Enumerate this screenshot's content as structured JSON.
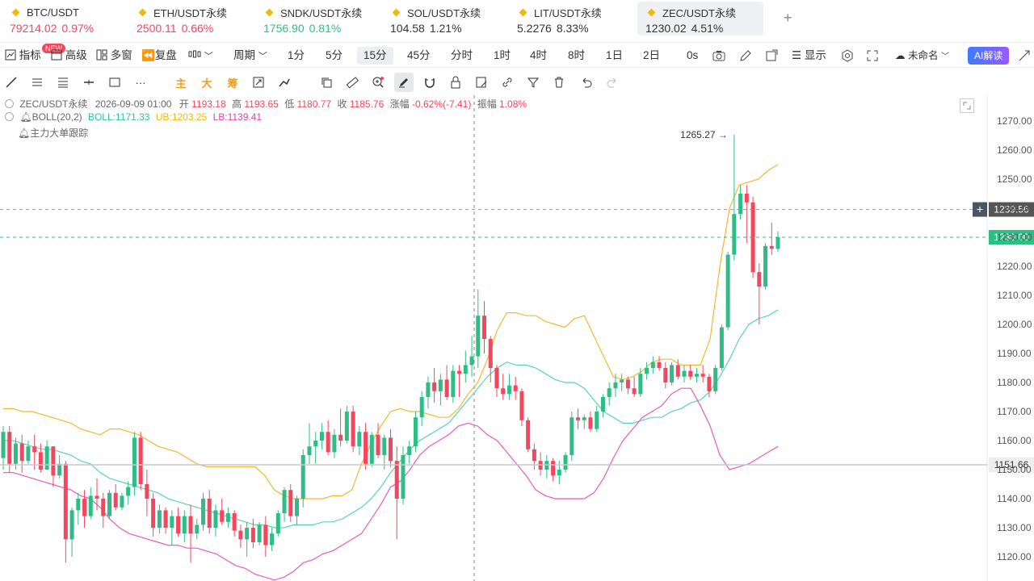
{
  "tickers": [
    {
      "symbol": "BTC/USDT",
      "price": "79214.02",
      "change": "0.97%",
      "trend": "down",
      "active": false
    },
    {
      "symbol": "ETH/USDT永续",
      "price": "2500.11",
      "change": "0.66%",
      "trend": "down",
      "active": false
    },
    {
      "symbol": "SNDK/USDT永续",
      "price": "1756.90",
      "change": "0.81%",
      "trend": "up",
      "active": false
    },
    {
      "symbol": "SOL/USDT永续",
      "price": "104.58",
      "change": "1.21%",
      "trend": "neutral",
      "active": false
    },
    {
      "symbol": "LIT/USDT永续",
      "price": "5.2276",
      "change": "8.33%",
      "trend": "neutral",
      "active": false
    },
    {
      "symbol": "ZEC/USDT永续",
      "price": "1230.02",
      "change": "4.51%",
      "trend": "neutral",
      "active": true
    }
  ],
  "add_tab": "+",
  "toolbar": {
    "indicator": "指标",
    "new_badge": "NEW",
    "advanced": "高级",
    "multi_window": "多窗",
    "replay": "复盘",
    "period": "周期",
    "intervals": [
      "1分",
      "5分",
      "15分",
      "45分",
      "分时",
      "1时",
      "4时",
      "8时",
      "1日",
      "2日",
      "0s"
    ],
    "selected_interval": "15分",
    "display": "显示",
    "unnamed": "未命名",
    "ai": "AI解读"
  },
  "drawbar": {
    "main": "主",
    "large": "大",
    "chips": "筹"
  },
  "info": {
    "symbol": "ZEC/USDT永续",
    "datetime": "2026-09-09 01:00",
    "open_label": "开",
    "open": "1193.18",
    "high_label": "高",
    "high": "1193.65",
    "low_label": "低",
    "low": "1180.77",
    "close_label": "收",
    "close": "1185.76",
    "change_label": "涨幅",
    "change": "-0.62%(-7.41)",
    "amp_label": "振幅",
    "amp": "1.08%",
    "boll_name": "BOLL(20,2)",
    "boll_mid": "BOLL:1171.33",
    "boll_ub": "UB:1203.25",
    "boll_lb": "LB:1139.41",
    "tracker": "主力大单跟踪"
  },
  "chart_data": {
    "type": "candlestick",
    "y_ticks": [
      1270,
      1260,
      1250,
      1240,
      1230,
      1220,
      1210,
      1200,
      1190,
      1180,
      1170,
      1160,
      1150,
      1140,
      1130,
      1120
    ],
    "ylim": [
      1115,
      1273
    ],
    "max_label": "1265.27",
    "price_tags": [
      {
        "value": 1239.56,
        "label": "1239.56",
        "kind": "crosshair"
      },
      {
        "value": 1230.0,
        "label": "1230.00",
        "kind": "last"
      },
      {
        "value": 1151.66,
        "label": "1151.66",
        "kind": "level"
      }
    ],
    "candles": [
      {
        "o": 1154,
        "h": 1165,
        "l": 1150,
        "c": 1163
      },
      {
        "o": 1163,
        "h": 1165,
        "l": 1149,
        "c": 1152
      },
      {
        "o": 1152,
        "h": 1161,
        "l": 1150,
        "c": 1159
      },
      {
        "o": 1159,
        "h": 1162,
        "l": 1149,
        "c": 1153
      },
      {
        "o": 1153,
        "h": 1160,
        "l": 1152,
        "c": 1158
      },
      {
        "o": 1158,
        "h": 1162,
        "l": 1150,
        "c": 1156
      },
      {
        "o": 1156,
        "h": 1159,
        "l": 1149,
        "c": 1150
      },
      {
        "o": 1150,
        "h": 1160,
        "l": 1150,
        "c": 1158
      },
      {
        "o": 1158,
        "h": 1158,
        "l": 1144,
        "c": 1148
      },
      {
        "o": 1148,
        "h": 1155,
        "l": 1147,
        "c": 1152
      },
      {
        "o": 1152,
        "h": 1153,
        "l": 1118,
        "c": 1126
      },
      {
        "o": 1126,
        "h": 1137,
        "l": 1120,
        "c": 1136
      },
      {
        "o": 1136,
        "h": 1142,
        "l": 1131,
        "c": 1140
      },
      {
        "o": 1140,
        "h": 1143,
        "l": 1130,
        "c": 1134
      },
      {
        "o": 1134,
        "h": 1144,
        "l": 1133,
        "c": 1141
      },
      {
        "o": 1141,
        "h": 1147,
        "l": 1136,
        "c": 1140
      },
      {
        "o": 1140,
        "h": 1142,
        "l": 1130,
        "c": 1134
      },
      {
        "o": 1134,
        "h": 1143,
        "l": 1133,
        "c": 1142
      },
      {
        "o": 1142,
        "h": 1145,
        "l": 1136,
        "c": 1137
      },
      {
        "o": 1137,
        "h": 1142,
        "l": 1136,
        "c": 1141
      },
      {
        "o": 1141,
        "h": 1146,
        "l": 1138,
        "c": 1144
      },
      {
        "o": 1144,
        "h": 1163,
        "l": 1141,
        "c": 1161
      },
      {
        "o": 1161,
        "h": 1163,
        "l": 1143,
        "c": 1145
      },
      {
        "o": 1145,
        "h": 1150,
        "l": 1134,
        "c": 1140
      },
      {
        "o": 1140,
        "h": 1142,
        "l": 1127,
        "c": 1130
      },
      {
        "o": 1130,
        "h": 1138,
        "l": 1128,
        "c": 1136
      },
      {
        "o": 1136,
        "h": 1137,
        "l": 1128,
        "c": 1130
      },
      {
        "o": 1130,
        "h": 1136,
        "l": 1124,
        "c": 1134
      },
      {
        "o": 1134,
        "h": 1137,
        "l": 1127,
        "c": 1128
      },
      {
        "o": 1128,
        "h": 1136,
        "l": 1125,
        "c": 1134
      },
      {
        "o": 1134,
        "h": 1138,
        "l": 1118,
        "c": 1128
      },
      {
        "o": 1128,
        "h": 1133,
        "l": 1126,
        "c": 1131
      },
      {
        "o": 1131,
        "h": 1142,
        "l": 1129,
        "c": 1140
      },
      {
        "o": 1140,
        "h": 1143,
        "l": 1128,
        "c": 1130
      },
      {
        "o": 1130,
        "h": 1138,
        "l": 1127,
        "c": 1136
      },
      {
        "o": 1136,
        "h": 1140,
        "l": 1131,
        "c": 1132
      },
      {
        "o": 1132,
        "h": 1137,
        "l": 1130,
        "c": 1135
      },
      {
        "o": 1135,
        "h": 1136,
        "l": 1127,
        "c": 1129
      },
      {
        "o": 1129,
        "h": 1131,
        "l": 1123,
        "c": 1126
      },
      {
        "o": 1126,
        "h": 1132,
        "l": 1120,
        "c": 1130
      },
      {
        "o": 1130,
        "h": 1133,
        "l": 1123,
        "c": 1125
      },
      {
        "o": 1125,
        "h": 1132,
        "l": 1124,
        "c": 1131
      },
      {
        "o": 1131,
        "h": 1134,
        "l": 1120,
        "c": 1124
      },
      {
        "o": 1124,
        "h": 1130,
        "l": 1122,
        "c": 1128
      },
      {
        "o": 1128,
        "h": 1136,
        "l": 1127,
        "c": 1135
      },
      {
        "o": 1135,
        "h": 1144,
        "l": 1132,
        "c": 1143
      },
      {
        "o": 1143,
        "h": 1145,
        "l": 1132,
        "c": 1134
      },
      {
        "o": 1134,
        "h": 1141,
        "l": 1131,
        "c": 1140
      },
      {
        "o": 1140,
        "h": 1157,
        "l": 1137,
        "c": 1155
      },
      {
        "o": 1155,
        "h": 1166,
        "l": 1152,
        "c": 1158
      },
      {
        "o": 1158,
        "h": 1163,
        "l": 1152,
        "c": 1160
      },
      {
        "o": 1160,
        "h": 1166,
        "l": 1157,
        "c": 1163
      },
      {
        "o": 1163,
        "h": 1167,
        "l": 1155,
        "c": 1156
      },
      {
        "o": 1156,
        "h": 1164,
        "l": 1154,
        "c": 1162
      },
      {
        "o": 1162,
        "h": 1171,
        "l": 1158,
        "c": 1160
      },
      {
        "o": 1160,
        "h": 1172,
        "l": 1159,
        "c": 1170
      },
      {
        "o": 1170,
        "h": 1172,
        "l": 1156,
        "c": 1158
      },
      {
        "o": 1158,
        "h": 1165,
        "l": 1155,
        "c": 1163
      },
      {
        "o": 1163,
        "h": 1166,
        "l": 1150,
        "c": 1152
      },
      {
        "o": 1152,
        "h": 1163,
        "l": 1151,
        "c": 1162
      },
      {
        "o": 1162,
        "h": 1166,
        "l": 1154,
        "c": 1155
      },
      {
        "o": 1155,
        "h": 1162,
        "l": 1150,
        "c": 1161
      },
      {
        "o": 1161,
        "h": 1164,
        "l": 1151,
        "c": 1153
      },
      {
        "o": 1153,
        "h": 1158,
        "l": 1126,
        "c": 1140
      },
      {
        "o": 1140,
        "h": 1158,
        "l": 1138,
        "c": 1155
      },
      {
        "o": 1155,
        "h": 1160,
        "l": 1152,
        "c": 1158
      },
      {
        "o": 1158,
        "h": 1170,
        "l": 1156,
        "c": 1168
      },
      {
        "o": 1168,
        "h": 1177,
        "l": 1165,
        "c": 1175
      },
      {
        "o": 1175,
        "h": 1182,
        "l": 1171,
        "c": 1180
      },
      {
        "o": 1180,
        "h": 1185,
        "l": 1173,
        "c": 1177
      },
      {
        "o": 1177,
        "h": 1183,
        "l": 1172,
        "c": 1181
      },
      {
        "o": 1181,
        "h": 1186,
        "l": 1174,
        "c": 1175
      },
      {
        "o": 1175,
        "h": 1186,
        "l": 1173,
        "c": 1184
      },
      {
        "o": 1184,
        "h": 1186,
        "l": 1175,
        "c": 1183
      },
      {
        "o": 1183,
        "h": 1191,
        "l": 1180,
        "c": 1186
      },
      {
        "o": 1186,
        "h": 1196,
        "l": 1182,
        "c": 1189
      },
      {
        "o": 1189,
        "h": 1212,
        "l": 1185,
        "c": 1203
      },
      {
        "o": 1203,
        "h": 1208,
        "l": 1190,
        "c": 1195
      },
      {
        "o": 1195,
        "h": 1196,
        "l": 1180,
        "c": 1185
      },
      {
        "o": 1185,
        "h": 1186,
        "l": 1175,
        "c": 1178
      },
      {
        "o": 1178,
        "h": 1183,
        "l": 1174,
        "c": 1176
      },
      {
        "o": 1176,
        "h": 1183,
        "l": 1174,
        "c": 1179
      },
      {
        "o": 1179,
        "h": 1182,
        "l": 1174,
        "c": 1177
      },
      {
        "o": 1177,
        "h": 1178,
        "l": 1165,
        "c": 1167
      },
      {
        "o": 1167,
        "h": 1168,
        "l": 1156,
        "c": 1157
      },
      {
        "o": 1157,
        "h": 1159,
        "l": 1150,
        "c": 1153
      },
      {
        "o": 1153,
        "h": 1156,
        "l": 1148,
        "c": 1150
      },
      {
        "o": 1150,
        "h": 1155,
        "l": 1147,
        "c": 1153
      },
      {
        "o": 1153,
        "h": 1154,
        "l": 1146,
        "c": 1148
      },
      {
        "o": 1148,
        "h": 1153,
        "l": 1145,
        "c": 1150
      },
      {
        "o": 1150,
        "h": 1156,
        "l": 1149,
        "c": 1155
      },
      {
        "o": 1155,
        "h": 1170,
        "l": 1153,
        "c": 1168
      },
      {
        "o": 1168,
        "h": 1171,
        "l": 1164,
        "c": 1167
      },
      {
        "o": 1167,
        "h": 1169,
        "l": 1164,
        "c": 1168
      },
      {
        "o": 1168,
        "h": 1170,
        "l": 1163,
        "c": 1164
      },
      {
        "o": 1164,
        "h": 1172,
        "l": 1163,
        "c": 1170
      },
      {
        "o": 1170,
        "h": 1176,
        "l": 1168,
        "c": 1175
      },
      {
        "o": 1175,
        "h": 1180,
        "l": 1172,
        "c": 1178
      },
      {
        "o": 1178,
        "h": 1183,
        "l": 1175,
        "c": 1180
      },
      {
        "o": 1180,
        "h": 1183,
        "l": 1177,
        "c": 1181
      },
      {
        "o": 1181,
        "h": 1182,
        "l": 1176,
        "c": 1178
      },
      {
        "o": 1178,
        "h": 1182,
        "l": 1175,
        "c": 1176
      },
      {
        "o": 1176,
        "h": 1185,
        "l": 1175,
        "c": 1183
      },
      {
        "o": 1183,
        "h": 1187,
        "l": 1181,
        "c": 1185
      },
      {
        "o": 1185,
        "h": 1189,
        "l": 1183,
        "c": 1187
      },
      {
        "o": 1187,
        "h": 1189,
        "l": 1184,
        "c": 1185
      },
      {
        "o": 1185,
        "h": 1187,
        "l": 1178,
        "c": 1180
      },
      {
        "o": 1180,
        "h": 1187,
        "l": 1179,
        "c": 1186
      },
      {
        "o": 1186,
        "h": 1188,
        "l": 1181,
        "c": 1182
      },
      {
        "o": 1182,
        "h": 1186,
        "l": 1180,
        "c": 1184
      },
      {
        "o": 1184,
        "h": 1186,
        "l": 1181,
        "c": 1182
      },
      {
        "o": 1182,
        "h": 1185,
        "l": 1180,
        "c": 1183
      },
      {
        "o": 1183,
        "h": 1186,
        "l": 1180,
        "c": 1182
      },
      {
        "o": 1182,
        "h": 1183,
        "l": 1175,
        "c": 1177
      },
      {
        "o": 1177,
        "h": 1186,
        "l": 1176,
        "c": 1185
      },
      {
        "o": 1185,
        "h": 1200,
        "l": 1184,
        "c": 1199
      },
      {
        "o": 1199,
        "h": 1225,
        "l": 1198,
        "c": 1224
      },
      {
        "o": 1224,
        "h": 1265.27,
        "l": 1222,
        "c": 1238
      },
      {
        "o": 1238,
        "h": 1248,
        "l": 1236,
        "c": 1245
      },
      {
        "o": 1245,
        "h": 1248,
        "l": 1228,
        "c": 1242
      },
      {
        "o": 1242,
        "h": 1244,
        "l": 1216,
        "c": 1218
      },
      {
        "o": 1218,
        "h": 1221,
        "l": 1200,
        "c": 1213
      },
      {
        "o": 1213,
        "h": 1228,
        "l": 1212,
        "c": 1227
      },
      {
        "o": 1227,
        "h": 1235,
        "l": 1224,
        "c": 1226
      },
      {
        "o": 1226,
        "h": 1232,
        "l": 1225,
        "c": 1230
      }
    ],
    "boll_upper": [
      1171,
      1171,
      1170,
      1170,
      1169,
      1168,
      1167,
      1166,
      1164,
      1163,
      1162,
      1164,
      1164,
      1163,
      1162,
      1160,
      1158,
      1157,
      1156,
      1154,
      1152,
      1151,
      1151,
      1151,
      1151,
      1151,
      1151,
      1148,
      1143,
      1141,
      1140,
      1140,
      1140,
      1140,
      1141,
      1141,
      1143,
      1152,
      1159,
      1165,
      1170,
      1171,
      1170,
      1170,
      1169,
      1168,
      1168,
      1171,
      1176,
      1180,
      1188,
      1198,
      1204,
      1204,
      1203,
      1203,
      1201,
      1200,
      1199,
      1202,
      1203,
      1196,
      1189,
      1182,
      1181,
      1182,
      1184,
      1187,
      1188,
      1188,
      1186,
      1186,
      1186,
      1195,
      1220,
      1240,
      1248,
      1249,
      1250,
      1253,
      1255
    ],
    "boll_mid": [
      1160,
      1160,
      1159,
      1158,
      1157,
      1157,
      1156,
      1155,
      1153,
      1152,
      1149,
      1147,
      1146,
      1145,
      1144,
      1143,
      1142,
      1140,
      1139,
      1138,
      1137,
      1136,
      1135,
      1134,
      1133,
      1132,
      1131,
      1131,
      1130,
      1130,
      1131,
      1131,
      1131,
      1132,
      1132,
      1133,
      1135,
      1137,
      1140,
      1144,
      1149,
      1153,
      1157,
      1160,
      1162,
      1164,
      1166,
      1170,
      1174,
      1178,
      1182,
      1185,
      1187,
      1186,
      1186,
      1185,
      1183,
      1181,
      1180,
      1180,
      1178,
      1174,
      1170,
      1168,
      1166,
      1166,
      1167,
      1168,
      1168,
      1170,
      1171,
      1173,
      1174,
      1177,
      1182,
      1188,
      1195,
      1200,
      1202,
      1203,
      1205
    ],
    "boll_lower": [
      1149,
      1149,
      1148,
      1147,
      1146,
      1145,
      1144,
      1143,
      1141,
      1140,
      1137,
      1133,
      1130,
      1128,
      1127,
      1126,
      1125,
      1124,
      1124,
      1123,
      1123,
      1122,
      1121,
      1119,
      1117,
      1116,
      1114,
      1113,
      1112,
      1113,
      1115,
      1118,
      1119,
      1121,
      1122,
      1124,
      1126,
      1128,
      1133,
      1138,
      1144,
      1146,
      1150,
      1155,
      1158,
      1160,
      1162,
      1165,
      1166,
      1165,
      1162,
      1160,
      1156,
      1152,
      1148,
      1143,
      1141,
      1140,
      1140,
      1140,
      1140,
      1142,
      1147,
      1154,
      1160,
      1164,
      1168,
      1170,
      1172,
      1176,
      1178,
      1178,
      1172,
      1165,
      1155,
      1150,
      1151,
      1152,
      1154,
      1156,
      1158
    ]
  }
}
